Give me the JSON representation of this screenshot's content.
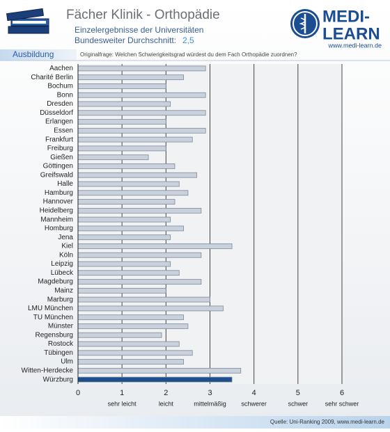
{
  "header": {
    "title": "Fächer Klinik - Orthopädie",
    "subtitle": "Einzelergebnisse der Universitäten",
    "average_label": "Bundesweiter Durchschnitt:",
    "average_value": "2,5",
    "section": "Ausbildung",
    "question": "Originalfrage: Welchen Schwierigkeitsgrad würdest du dem Fach Orthopädie zuordnen?"
  },
  "logo": {
    "line1": "MEDI-",
    "line2": "LEARN",
    "url": "www.medi-learn.de"
  },
  "footer": {
    "source": "Quelle: Uni-Ranking 2009, www.medi-learn.de"
  },
  "chart_data": {
    "type": "hbar",
    "categories": [
      "Aachen",
      "Charité Berlin",
      "Bochum",
      "Bonn",
      "Dresden",
      "Düsseldorf",
      "Erlangen",
      "Essen",
      "Frankfurt",
      "Freiburg",
      "Gießen",
      "Göttingen",
      "Greifswald",
      "Halle",
      "Hamburg",
      "Hannover",
      "Heidelberg",
      "Mannheim",
      "Homburg",
      "Jena",
      "Kiel",
      "Köln",
      "Leipzig",
      "Lübeck",
      "Magdeburg",
      "Mainz",
      "Marburg",
      "LMU München",
      "TU München",
      "Münster",
      "Regensburg",
      "Rostock",
      "Tübingen",
      "Ulm",
      "Witten-Herdecke",
      "Würzburg"
    ],
    "values": [
      2.9,
      2.4,
      2.0,
      2.9,
      2.1,
      2.9,
      2.0,
      2.9,
      2.6,
      2.0,
      1.6,
      2.2,
      2.7,
      2.3,
      2.5,
      2.2,
      2.8,
      2.1,
      2.4,
      2.1,
      3.5,
      2.8,
      2.1,
      2.3,
      2.8,
      2.0,
      3.0,
      3.3,
      2.4,
      2.5,
      1.9,
      2.3,
      2.6,
      2.4,
      3.7,
      3.5
    ],
    "colors": [
      "#c9d1dd",
      "#c9d1dd",
      "#c9d1dd",
      "#c9d1dd",
      "#c9d1dd",
      "#c9d1dd",
      "#c9d1dd",
      "#c9d1dd",
      "#c9d1dd",
      "#c9d1dd",
      "#c9d1dd",
      "#c9d1dd",
      "#c9d1dd",
      "#c9d1dd",
      "#c9d1dd",
      "#c9d1dd",
      "#c9d1dd",
      "#c9d1dd",
      "#c9d1dd",
      "#c9d1dd",
      "#c9d1dd",
      "#c9d1dd",
      "#c9d1dd",
      "#c9d1dd",
      "#c9d1dd",
      "#c9d1dd",
      "#c9d1dd",
      "#c9d1dd",
      "#c9d1dd",
      "#c9d1dd",
      "#c9d1dd",
      "#c9d1dd",
      "#c9d1dd",
      "#c9d1dd",
      "#c9d1dd",
      "#1c4f8f"
    ],
    "xlim": [
      0,
      6
    ],
    "xticks": [
      0,
      1,
      2,
      3,
      4,
      5,
      6
    ],
    "xtick_descriptions": [
      {
        "value": 1,
        "label": "sehr leicht"
      },
      {
        "value": 2,
        "label": "leicht"
      },
      {
        "value": 3,
        "label": "mittelmäßig"
      },
      {
        "value": 4,
        "label": "schwerer"
      },
      {
        "value": 5,
        "label": "schwer"
      },
      {
        "value": 6,
        "label": "sehr schwer"
      }
    ],
    "grid": true
  }
}
